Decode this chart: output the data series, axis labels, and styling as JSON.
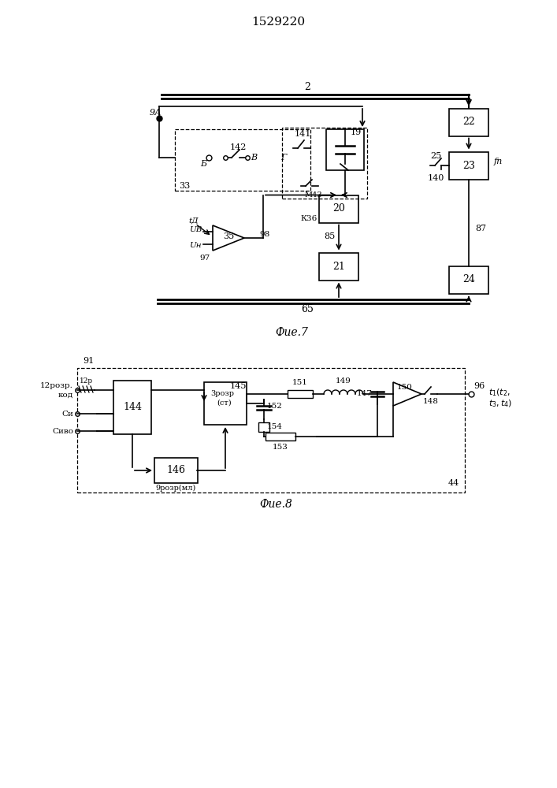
{
  "title": "1529220",
  "fig7_label": "Фие.7",
  "fig8_label": "Фие.8",
  "background": "#ffffff",
  "line_color": "#000000",
  "text_color": "#000000"
}
